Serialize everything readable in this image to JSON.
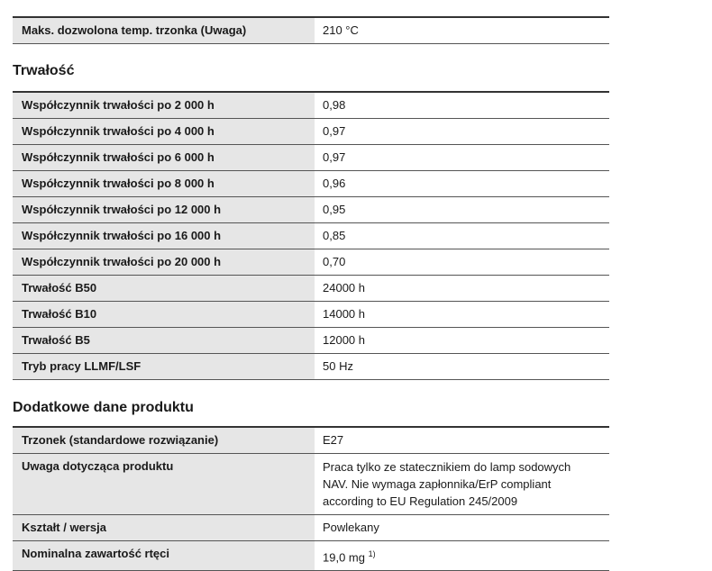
{
  "section0": {
    "rows": [
      {
        "label": "Maks. dozwolona temp. trzonka (Uwaga)",
        "value": "210 °C"
      }
    ]
  },
  "section1": {
    "title": "Trwałość",
    "rows": [
      {
        "label": "Współczynnik trwałości po 2 000 h",
        "value": "0,98"
      },
      {
        "label": "Współczynnik trwałości po 4 000 h",
        "value": "0,97"
      },
      {
        "label": "Współczynnik trwałości po 6 000 h",
        "value": "0,97"
      },
      {
        "label": "Współczynnik trwałości po 8 000 h",
        "value": "0,96"
      },
      {
        "label": "Współczynnik trwałości po 12 000 h",
        "value": "0,95"
      },
      {
        "label": "Współczynnik trwałości po 16 000 h",
        "value": "0,85"
      },
      {
        "label": "Współczynnik trwałości po 20 000 h",
        "value": "0,70"
      },
      {
        "label": "Trwałość B50",
        "value": "24000 h"
      },
      {
        "label": "Trwałość B10",
        "value": "14000 h"
      },
      {
        "label": "Trwałość B5",
        "value": "12000 h"
      },
      {
        "label": "Tryb pracy LLMF/LSF",
        "value": "50 Hz"
      }
    ]
  },
  "section2": {
    "title": "Dodatkowe dane produktu",
    "rows": [
      {
        "label": "Trzonek (standardowe rozwiązanie)",
        "value": "E27"
      },
      {
        "label": "Uwaga dotycząca produktu",
        "value": "Praca tylko ze statecznikiem do lamp sodowych NAV. Nie wymaga zapłonnika/ErP compliant according to EU Regulation 245/2009"
      },
      {
        "label": "Kształt / wersja",
        "value": "Powlekany"
      },
      {
        "label": "Nominalna zawartość rtęci",
        "value": "19,0 mg",
        "footnote": "1)"
      }
    ]
  }
}
